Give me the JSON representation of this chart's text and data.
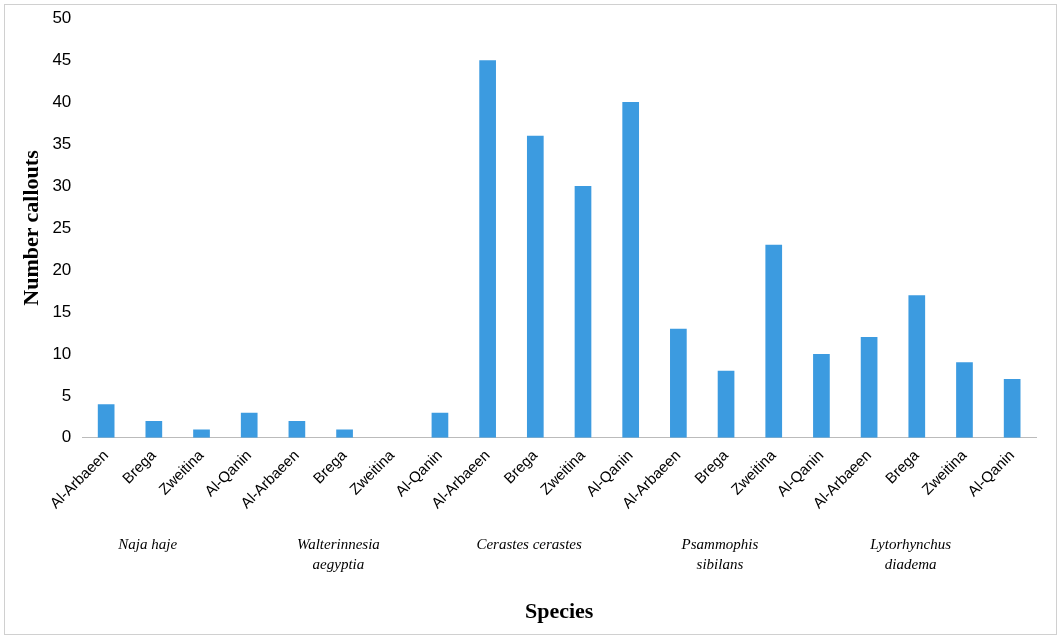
{
  "chart_data": {
    "type": "bar",
    "xlabel": "Species",
    "ylabel": "Number callouts",
    "categories": [
      "Al-Arbaeen",
      "Brega",
      "Zweitina",
      "Al-Qanin",
      "Al-Arbaeen",
      "Brega",
      "Zweitina",
      "Al-Qanin",
      "Al-Arbaeen",
      "Brega",
      "Zweitina",
      "Al-Qanin",
      "Al-Arbaeen",
      "Brega",
      "Zweitina",
      "Al-Qanin",
      "Al-Arbaeen",
      "Brega",
      "Zweitina",
      "Al-Qanin"
    ],
    "values": [
      4,
      2,
      1,
      3,
      2,
      1,
      0,
      3,
      45,
      36,
      30,
      40,
      13,
      8,
      23,
      10,
      12,
      17,
      9,
      7
    ],
    "color": "#3c9be0",
    "ylim": [
      0,
      50
    ],
    "yticks": [
      0,
      5,
      10,
      15,
      20,
      25,
      30,
      35,
      40,
      45,
      50
    ],
    "grid": false,
    "legend": false,
    "annotations": [
      "Naja haje",
      "Walterinnesia aegyptia",
      "Cerastes cerastes",
      "Psammophis sibilans",
      "Lytorhynchus diadema"
    ]
  }
}
